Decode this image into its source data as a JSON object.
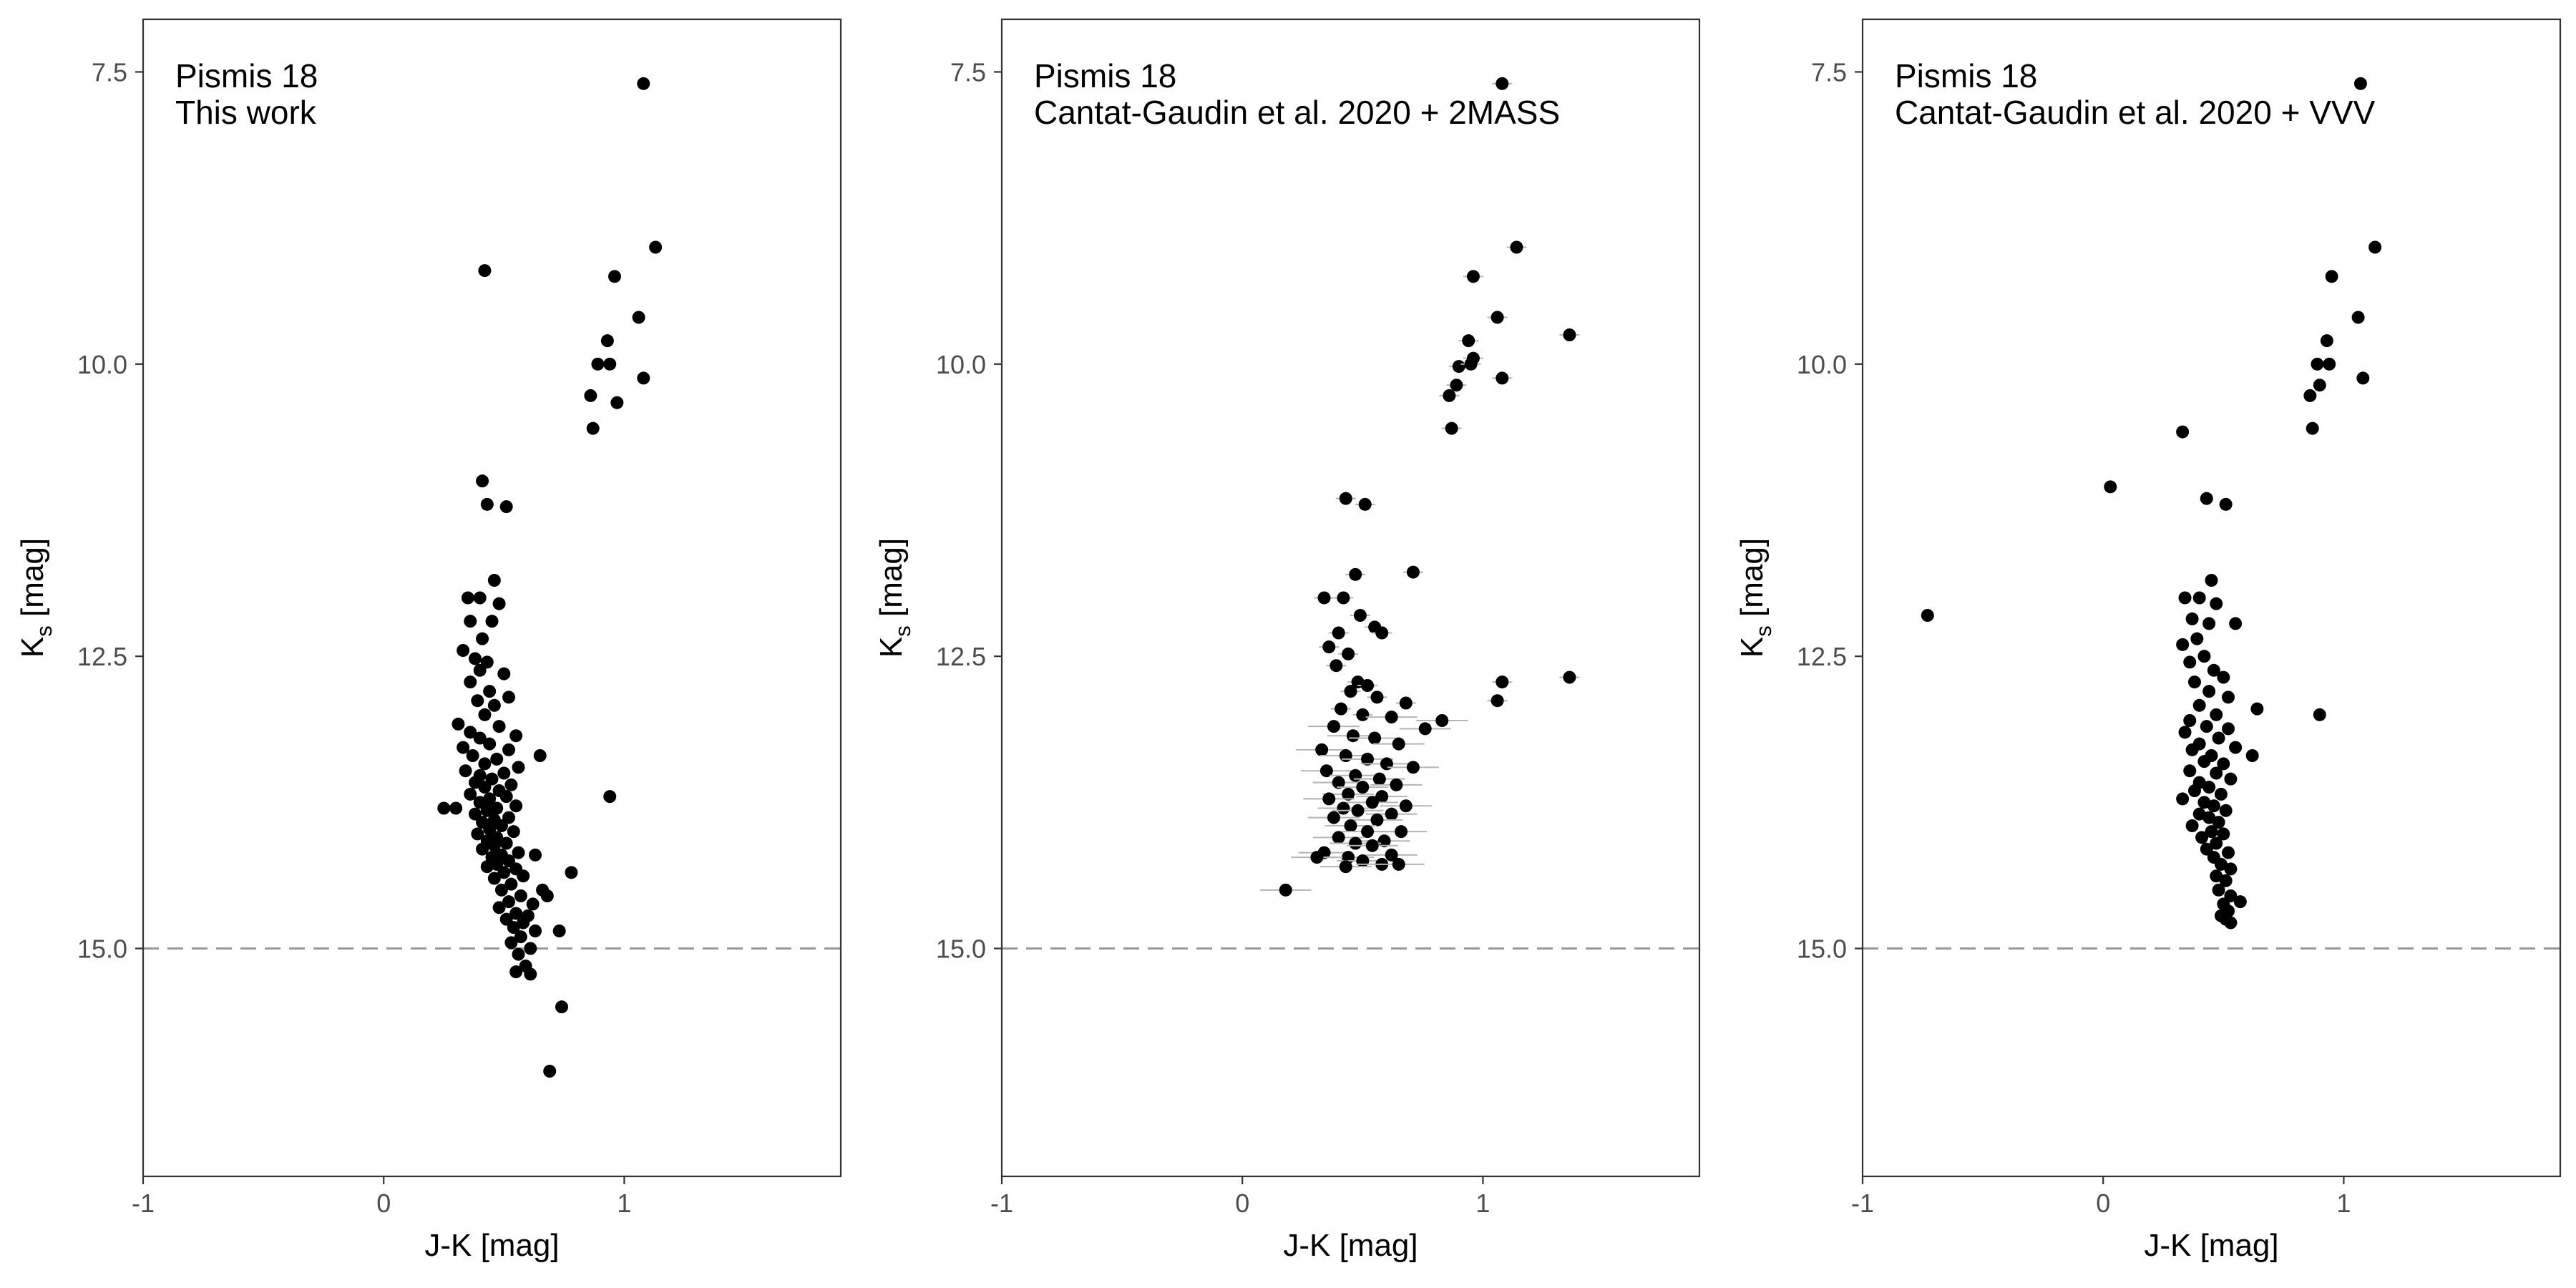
{
  "chart_data": [
    {
      "type": "scatter",
      "annotation": [
        "Pismis 18",
        "This work"
      ],
      "xlabel": "J-K [mag]",
      "ylabel": "Ks [mag]",
      "ylabel_main": "K",
      "ylabel_sub": "s",
      "ylabel_rest": " [mag]",
      "xlim": [
        -1.0,
        1.9
      ],
      "ylim": [
        16.95,
        7.05
      ],
      "y_inverted": true,
      "xticks": [
        -1,
        0,
        1
      ],
      "xtick_labels": [
        "-1",
        "0",
        "1"
      ],
      "yticks": [
        7.5,
        10.0,
        12.5,
        15.0
      ],
      "ytick_labels": [
        "7.5",
        "10.0",
        "12.5",
        "15.0"
      ],
      "hline": 15.0,
      "grid": false,
      "points": [
        [
          1.08,
          7.6
        ],
        [
          1.13,
          9.0
        ],
        [
          0.42,
          9.2
        ],
        [
          0.96,
          9.25
        ],
        [
          1.06,
          9.6
        ],
        [
          0.93,
          9.8
        ],
        [
          0.89,
          10.0
        ],
        [
          0.94,
          10.0
        ],
        [
          1.08,
          10.12
        ],
        [
          0.86,
          10.27
        ],
        [
          0.97,
          10.33
        ],
        [
          0.87,
          10.55
        ],
        [
          0.41,
          11.0
        ],
        [
          0.43,
          11.2
        ],
        [
          0.51,
          11.22
        ],
        [
          0.46,
          11.85
        ],
        [
          0.35,
          12.0
        ],
        [
          0.4,
          12.0
        ],
        [
          0.48,
          12.05
        ],
        [
          0.36,
          12.2
        ],
        [
          0.45,
          12.2
        ],
        [
          0.41,
          12.35
        ],
        [
          0.33,
          12.45
        ],
        [
          0.38,
          12.52
        ],
        [
          0.43,
          12.55
        ],
        [
          0.4,
          12.62
        ],
        [
          0.5,
          12.65
        ],
        [
          0.36,
          12.72
        ],
        [
          0.44,
          12.8
        ],
        [
          0.52,
          12.85
        ],
        [
          0.39,
          12.88
        ],
        [
          0.46,
          12.92
        ],
        [
          0.42,
          13.0
        ],
        [
          0.31,
          13.08
        ],
        [
          0.48,
          13.1
        ],
        [
          0.36,
          13.15
        ],
        [
          0.55,
          13.18
        ],
        [
          0.4,
          13.2
        ],
        [
          0.44,
          13.25
        ],
        [
          0.33,
          13.28
        ],
        [
          0.52,
          13.3
        ],
        [
          0.37,
          13.35
        ],
        [
          0.47,
          13.38
        ],
        [
          0.42,
          13.42
        ],
        [
          0.56,
          13.45
        ],
        [
          0.34,
          13.48
        ],
        [
          0.5,
          13.5
        ],
        [
          0.4,
          13.52
        ],
        [
          0.45,
          13.55
        ],
        [
          0.38,
          13.58
        ],
        [
          0.53,
          13.6
        ],
        [
          0.42,
          13.62
        ],
        [
          0.48,
          13.65
        ],
        [
          0.36,
          13.68
        ],
        [
          0.51,
          13.7
        ],
        [
          0.44,
          13.72
        ],
        [
          0.4,
          13.75
        ],
        [
          0.55,
          13.78
        ],
        [
          0.47,
          13.8
        ],
        [
          0.43,
          13.82
        ],
        [
          0.38,
          13.85
        ],
        [
          0.52,
          13.88
        ],
        [
          0.46,
          13.9
        ],
        [
          0.41,
          13.92
        ],
        [
          0.49,
          13.95
        ],
        [
          0.44,
          13.98
        ],
        [
          0.54,
          14.0
        ],
        [
          0.39,
          14.02
        ],
        [
          0.47,
          14.05
        ],
        [
          0.43,
          14.08
        ],
        [
          0.51,
          14.1
        ],
        [
          0.46,
          14.12
        ],
        [
          0.41,
          14.15
        ],
        [
          0.56,
          14.18
        ],
        [
          0.49,
          14.2
        ],
        [
          0.45,
          14.22
        ],
        [
          0.52,
          14.25
        ],
        [
          0.47,
          14.28
        ],
        [
          0.43,
          14.3
        ],
        [
          0.55,
          14.32
        ],
        [
          0.5,
          14.35
        ],
        [
          0.58,
          14.38
        ],
        [
          0.46,
          14.4
        ],
        [
          0.53,
          14.45
        ],
        [
          0.49,
          14.5
        ],
        [
          0.57,
          14.55
        ],
        [
          0.52,
          14.6
        ],
        [
          0.48,
          14.65
        ],
        [
          0.62,
          14.62
        ],
        [
          0.55,
          14.7
        ],
        [
          0.6,
          14.72
        ],
        [
          0.51,
          14.75
        ],
        [
          0.58,
          14.78
        ],
        [
          0.54,
          14.82
        ],
        [
          0.63,
          14.85
        ],
        [
          0.57,
          14.9
        ],
        [
          0.53,
          14.95
        ],
        [
          0.61,
          15.0
        ],
        [
          0.56,
          15.05
        ],
        [
          0.59,
          15.15
        ],
        [
          0.55,
          15.2
        ],
        [
          0.61,
          15.22
        ],
        [
          0.25,
          13.8
        ],
        [
          0.3,
          13.8
        ],
        [
          0.65,
          13.35
        ],
        [
          0.78,
          14.35
        ],
        [
          0.63,
          14.2
        ],
        [
          0.68,
          14.55
        ],
        [
          0.73,
          14.85
        ],
        [
          0.66,
          14.5
        ],
        [
          0.94,
          13.7
        ],
        [
          0.74,
          15.5
        ],
        [
          0.69,
          16.05
        ]
      ]
    },
    {
      "type": "scatter",
      "annotation": [
        "Pismis 18",
        "Cantat-Gaudin et al. 2020 + 2MASS"
      ],
      "xlabel": "J-K [mag]",
      "ylabel": "Ks [mag]",
      "ylabel_main": "K",
      "ylabel_sub": "s",
      "ylabel_rest": " [mag]",
      "xlim": [
        -1.0,
        1.9
      ],
      "ylim": [
        16.95,
        7.05
      ],
      "y_inverted": true,
      "xticks": [
        -1,
        0,
        1
      ],
      "xtick_labels": [
        "-1",
        "0",
        "1"
      ],
      "yticks": [
        7.5,
        10.0,
        12.5,
        15.0
      ],
      "ytick_labels": [
        "7.5",
        "10.0",
        "12.5",
        "15.0"
      ],
      "hline": 15.0,
      "grid": false,
      "points": [
        [
          1.08,
          7.6
        ],
        [
          1.14,
          9.0
        ],
        [
          0.96,
          9.25
        ],
        [
          1.06,
          9.6
        ],
        [
          0.94,
          9.8
        ],
        [
          1.36,
          9.75
        ],
        [
          0.96,
          9.95
        ],
        [
          0.9,
          10.02
        ],
        [
          0.95,
          10.0
        ],
        [
          1.08,
          10.12
        ],
        [
          0.89,
          10.18
        ],
        [
          0.86,
          10.27
        ],
        [
          0.87,
          10.55
        ],
        [
          0.43,
          11.15
        ],
        [
          0.51,
          11.2
        ],
        [
          0.47,
          11.8
        ],
        [
          0.71,
          11.78
        ],
        [
          0.34,
          12.0
        ],
        [
          0.42,
          12.0
        ],
        [
          0.49,
          12.15
        ],
        [
          0.55,
          12.25
        ],
        [
          0.4,
          12.3
        ],
        [
          0.58,
          12.3
        ],
        [
          0.36,
          12.42
        ],
        [
          0.44,
          12.48
        ],
        [
          0.39,
          12.58
        ],
        [
          0.48,
          12.72
        ],
        [
          0.52,
          12.75
        ],
        [
          1.36,
          12.68
        ],
        [
          1.08,
          12.72
        ],
        [
          0.45,
          12.8
        ],
        [
          0.56,
          12.85
        ],
        [
          0.68,
          12.9
        ],
        [
          1.06,
          12.88
        ],
        [
          0.41,
          12.95
        ],
        [
          0.5,
          13.0
        ],
        [
          0.62,
          13.02
        ],
        [
          0.83,
          13.05
        ],
        [
          0.76,
          13.12
        ],
        [
          0.38,
          13.1
        ],
        [
          0.46,
          13.18
        ],
        [
          0.55,
          13.2
        ],
        [
          0.65,
          13.25
        ],
        [
          0.33,
          13.3
        ],
        [
          0.43,
          13.35
        ],
        [
          0.52,
          13.38
        ],
        [
          0.6,
          13.42
        ],
        [
          0.71,
          13.45
        ],
        [
          0.35,
          13.48
        ],
        [
          0.47,
          13.52
        ],
        [
          0.57,
          13.55
        ],
        [
          0.4,
          13.58
        ],
        [
          0.64,
          13.6
        ],
        [
          0.5,
          13.62
        ],
        [
          0.44,
          13.68
        ],
        [
          0.58,
          13.7
        ],
        [
          0.36,
          13.72
        ],
        [
          0.54,
          13.75
        ],
        [
          0.68,
          13.78
        ],
        [
          0.42,
          13.8
        ],
        [
          0.48,
          13.82
        ],
        [
          0.62,
          13.85
        ],
        [
          0.38,
          13.88
        ],
        [
          0.56,
          13.9
        ],
        [
          0.45,
          13.95
        ],
        [
          0.52,
          14.0
        ],
        [
          0.66,
          14.0
        ],
        [
          0.4,
          14.05
        ],
        [
          0.59,
          14.08
        ],
        [
          0.47,
          14.1
        ],
        [
          0.54,
          14.12
        ],
        [
          0.34,
          14.18
        ],
        [
          0.62,
          14.2
        ],
        [
          0.44,
          14.22
        ],
        [
          0.5,
          14.25
        ],
        [
          0.31,
          14.22
        ],
        [
          0.58,
          14.28
        ],
        [
          0.65,
          14.28
        ],
        [
          0.43,
          14.3
        ],
        [
          0.18,
          14.5
        ]
      ]
    },
    {
      "type": "scatter",
      "annotation": [
        "Pismis 18",
        "Cantat-Gaudin et al. 2020 + VVV"
      ],
      "xlabel": "J-K [mag]",
      "ylabel": "Ks [mag]",
      "ylabel_main": "K",
      "ylabel_sub": "s",
      "ylabel_rest": " [mag]",
      "xlim": [
        -1.0,
        1.9
      ],
      "ylim": [
        16.95,
        7.05
      ],
      "y_inverted": true,
      "xticks": [
        -1,
        0,
        1
      ],
      "xtick_labels": [
        "-1",
        "0",
        "1"
      ],
      "yticks": [
        7.5,
        10.0,
        12.5,
        15.0
      ],
      "ytick_labels": [
        "7.5",
        "10.0",
        "12.5",
        "15.0"
      ],
      "hline": 15.0,
      "grid": false,
      "points": [
        [
          1.07,
          7.6
        ],
        [
          1.13,
          9.0
        ],
        [
          0.95,
          9.25
        ],
        [
          1.06,
          9.6
        ],
        [
          0.93,
          9.8
        ],
        [
          0.89,
          10.0
        ],
        [
          0.94,
          10.0
        ],
        [
          1.08,
          10.12
        ],
        [
          0.9,
          10.18
        ],
        [
          0.86,
          10.27
        ],
        [
          0.87,
          10.55
        ],
        [
          0.33,
          10.58
        ],
        [
          0.03,
          11.05
        ],
        [
          0.43,
          11.15
        ],
        [
          0.51,
          11.2
        ],
        [
          0.45,
          11.85
        ],
        [
          0.34,
          12.0
        ],
        [
          0.4,
          12.0
        ],
        [
          0.47,
          12.05
        ],
        [
          0.37,
          12.18
        ],
        [
          0.44,
          12.22
        ],
        [
          0.55,
          12.22
        ],
        [
          -0.73,
          12.15
        ],
        [
          0.39,
          12.35
        ],
        [
          0.33,
          12.4
        ],
        [
          0.42,
          12.5
        ],
        [
          0.36,
          12.55
        ],
        [
          0.46,
          12.62
        ],
        [
          0.5,
          12.68
        ],
        [
          0.38,
          12.72
        ],
        [
          0.44,
          12.8
        ],
        [
          0.52,
          12.85
        ],
        [
          0.4,
          12.92
        ],
        [
          0.64,
          12.95
        ],
        [
          0.47,
          13.0
        ],
        [
          0.9,
          13.0
        ],
        [
          0.36,
          13.05
        ],
        [
          0.43,
          13.1
        ],
        [
          0.52,
          13.12
        ],
        [
          0.34,
          13.15
        ],
        [
          0.48,
          13.2
        ],
        [
          0.4,
          13.25
        ],
        [
          0.55,
          13.28
        ],
        [
          0.37,
          13.3
        ],
        [
          0.45,
          13.35
        ],
        [
          0.62,
          13.35
        ],
        [
          0.42,
          13.4
        ],
        [
          0.5,
          13.42
        ],
        [
          0.36,
          13.48
        ],
        [
          0.47,
          13.5
        ],
        [
          0.53,
          13.55
        ],
        [
          0.4,
          13.58
        ],
        [
          0.44,
          13.62
        ],
        [
          0.38,
          13.65
        ],
        [
          0.49,
          13.68
        ],
        [
          0.33,
          13.72
        ],
        [
          0.42,
          13.75
        ],
        [
          0.46,
          13.78
        ],
        [
          0.51,
          13.82
        ],
        [
          0.4,
          13.85
        ],
        [
          0.44,
          13.88
        ],
        [
          0.48,
          13.92
        ],
        [
          0.37,
          13.95
        ],
        [
          0.45,
          14.0
        ],
        [
          0.5,
          14.02
        ],
        [
          0.41,
          14.05
        ],
        [
          0.47,
          14.1
        ],
        [
          0.43,
          14.15
        ],
        [
          0.52,
          14.18
        ],
        [
          0.46,
          14.22
        ],
        [
          0.49,
          14.28
        ],
        [
          0.53,
          14.32
        ],
        [
          0.47,
          14.38
        ],
        [
          0.51,
          14.42
        ],
        [
          0.48,
          14.5
        ],
        [
          0.53,
          14.55
        ],
        [
          0.57,
          14.6
        ],
        [
          0.5,
          14.62
        ],
        [
          0.52,
          14.68
        ],
        [
          0.49,
          14.72
        ],
        [
          0.53,
          14.78
        ],
        [
          0.51,
          14.75
        ]
      ]
    }
  ]
}
